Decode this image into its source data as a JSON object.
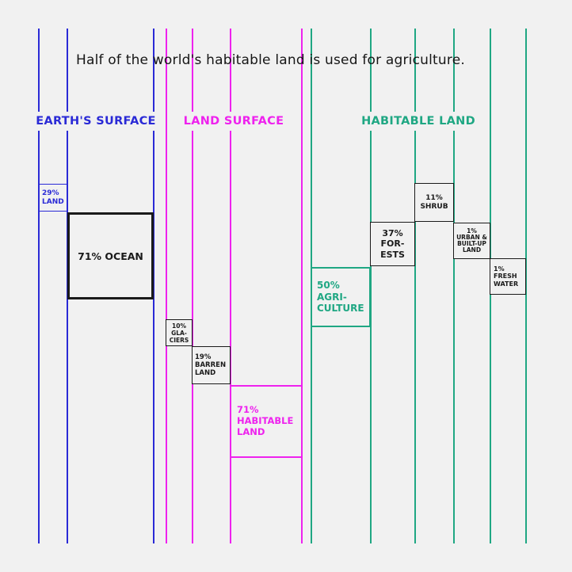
{
  "title": "Half of the world's habitable land is used for agriculture.",
  "colors": {
    "background": "#f1f1f1",
    "earth": "#2a2ad6",
    "land": "#ee22ee",
    "habitable": "#1fa783",
    "neutral": "#1a1a1a"
  },
  "sections": {
    "earth_surface": "EARTH'S SURFACE",
    "land_surface": "LAND SURFACE",
    "habitable_land": "HABITABLE LAND"
  },
  "breakdown": {
    "earth_surface": [
      {
        "label": "29%\nLAND",
        "percent": 29
      },
      {
        "label": "71% OCEAN",
        "percent": 71
      }
    ],
    "land_surface": [
      {
        "label": "10%\nGLA-\nCIERS",
        "percent": 10
      },
      {
        "label": "19%\nBARREN\nLAND",
        "percent": 19
      },
      {
        "label": "71%\nHABITABLE\nLAND",
        "percent": 71
      }
    ],
    "habitable_land": [
      {
        "label": "50%\nAGRI-\nCULTURE",
        "percent": 50
      },
      {
        "label": "37%\nFOR-\nESTS",
        "percent": 37
      },
      {
        "label": "11%\nSHRUB",
        "percent": 11
      },
      {
        "label": "1%\nURBAN &\nBUILT-UP\nLAND",
        "percent": 1
      },
      {
        "label": "1%\nFRESH\nWATER",
        "percent": 1
      }
    ]
  }
}
